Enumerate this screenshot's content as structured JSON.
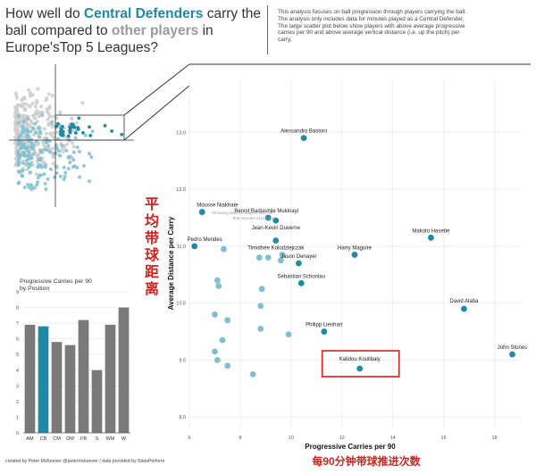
{
  "header": {
    "title_pre": "How well do ",
    "title_hl1": "Central Defenders",
    "title_mid1": " carry the ball compared to ",
    "title_hl2": "other players",
    "title_post": " in Europe'sTop 5 Leagues?",
    "description": "This analysis focuses on ball progression through players carrying the ball. The analysis only includes data for minutes played as a Central Defender. The large scatter plot below show players with above average progressive carries per 90 and above average vertical distance (i.e. up the pitch) per carry."
  },
  "overview": {
    "note": "*Showing data for players with min. 900 minutes at position"
  },
  "annotations": {
    "y_axis_cn": "平均带球距离",
    "x_axis_cn": "每90分钟带球推进次数"
  },
  "credit": "created by Peter McKeever @petermckeever / data provided by StatsPerform",
  "colors": {
    "accent": "#1f8aa6",
    "light_accent": "#7fbfcf",
    "grey": "#7a7a7a",
    "highlight_box": "#d4221c"
  },
  "chart_data": [
    {
      "type": "scatter",
      "title": "",
      "xlabel": "Progressive Carries per 90",
      "ylabel": "Average Distance per Carry",
      "xlim": [
        6,
        19
      ],
      "ylim": [
        7.8,
        13.6
      ],
      "xticks": [
        6,
        8,
        10,
        12,
        14,
        16,
        18
      ],
      "yticks": [
        8.0,
        9.0,
        10.0,
        11.0,
        12.0,
        13.0
      ],
      "ytick_labels": [
        "8.0",
        "9.0",
        "10.0",
        "11.0",
        "12.0",
        "13.0"
      ],
      "grid": true,
      "highlighted_player": "Kalidou Koulibaly",
      "labeled_points": [
        {
          "name": "Alessandro Bastoni",
          "x": 10.5,
          "y": 12.9
        },
        {
          "name": "Mousse Niakhate",
          "x": 6.5,
          "y": 11.6
        },
        {
          "name": "Benoit Badiashile Mukinayi",
          "x": 9.1,
          "y": 11.5
        },
        {
          "name": "Jean-Kevin Duverne",
          "x": 9.4,
          "y": 11.45
        },
        {
          "name": "Pedro Mendes",
          "x": 6.2,
          "y": 11.0
        },
        {
          "name": "Timothée Kolodziejczak",
          "x": 9.4,
          "y": 11.1
        },
        {
          "name": "Makoto Hasebe",
          "x": 15.5,
          "y": 11.15
        },
        {
          "name": "Harry Maguire",
          "x": 12.5,
          "y": 10.85
        },
        {
          "name": "Jason Denayer",
          "x": 10.3,
          "y": 10.7
        },
        {
          "name": "Sebastian Schonlau",
          "x": 10.4,
          "y": 10.35
        },
        {
          "name": "David Alaba",
          "x": 16.8,
          "y": 9.9
        },
        {
          "name": "Philipp Lienhart",
          "x": 11.3,
          "y": 9.5
        },
        {
          "name": "John Stones",
          "x": 18.7,
          "y": 9.1
        },
        {
          "name": "Kalidou Koulibaly",
          "x": 12.7,
          "y": 8.85
        }
      ],
      "unlabeled_points": [
        {
          "x": 7.35,
          "y": 10.95
        },
        {
          "x": 8.75,
          "y": 10.8
        },
        {
          "x": 9.1,
          "y": 10.8
        },
        {
          "x": 9.65,
          "y": 10.85
        },
        {
          "x": 9.6,
          "y": 10.75
        },
        {
          "x": 7.1,
          "y": 10.4
        },
        {
          "x": 7.15,
          "y": 10.3
        },
        {
          "x": 8.85,
          "y": 10.25
        },
        {
          "x": 8.8,
          "y": 9.95
        },
        {
          "x": 7.0,
          "y": 9.8
        },
        {
          "x": 7.5,
          "y": 9.7
        },
        {
          "x": 8.8,
          "y": 9.55
        },
        {
          "x": 9.9,
          "y": 9.45
        },
        {
          "x": 7.3,
          "y": 9.35
        },
        {
          "x": 7.1,
          "y": 9.0
        },
        {
          "x": 7.5,
          "y": 8.9
        },
        {
          "x": 7.0,
          "y": 9.15
        },
        {
          "x": 8.5,
          "y": 8.75
        }
      ]
    },
    {
      "type": "bar",
      "title": "Progressive Carries per 90",
      "subtitle": "by Position",
      "categories": [
        "AM",
        "CB",
        "CM",
        "DM",
        "FB",
        "S",
        "WM",
        "W"
      ],
      "values": [
        6.9,
        6.8,
        5.8,
        5.6,
        7.2,
        4.0,
        6.9,
        8.0
      ],
      "highlight_category": "CB",
      "ylim": [
        0,
        9
      ],
      "yticks": [
        0,
        1,
        2,
        3,
        4,
        5,
        6,
        7,
        8,
        9
      ]
    },
    {
      "type": "scatter",
      "title": "",
      "note": "*Showing data for players with min. 900 minutes at position",
      "highlight_region": "above average on both axes"
    }
  ]
}
